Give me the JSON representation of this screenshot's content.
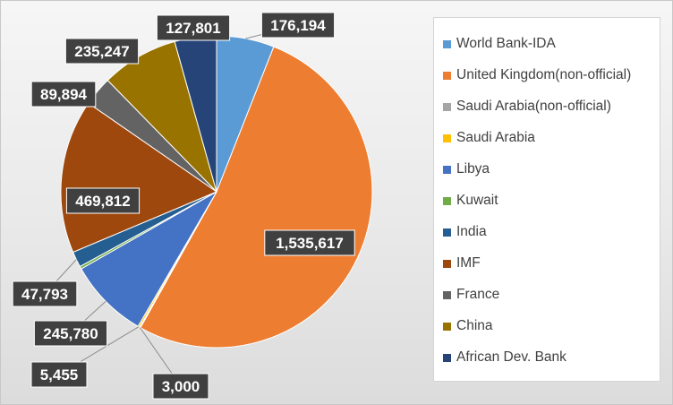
{
  "chart_data": {
    "type": "pie",
    "slices": [
      {
        "label": "World Bank-IDA",
        "value": 176194,
        "display": "176,194",
        "color": "#5b9bd5"
      },
      {
        "label": "United Kingdom(non-official)",
        "value": 1535617,
        "display": "1,535,617",
        "color": "#ed7d31"
      },
      {
        "label": "Saudi Arabia(non-official)",
        "value": 3000,
        "display": "3,000",
        "color": "#a5a5a5"
      },
      {
        "label": "Saudi Arabia",
        "value": 5455,
        "display": "5,455",
        "color": "#ffc000"
      },
      {
        "label": "Libya",
        "value": 245780,
        "display": "245,780",
        "color": "#4472c4"
      },
      {
        "label": "Kuwait",
        "value": 8000,
        "display": "",
        "color": "#70ad47"
      },
      {
        "label": "India",
        "value": 47793,
        "display": "47,793",
        "color": "#255e91"
      },
      {
        "label": "IMF",
        "value": 469812,
        "display": "469,812",
        "color": "#9e480e"
      },
      {
        "label": "France",
        "value": 89894,
        "display": "89,894",
        "color": "#636363"
      },
      {
        "label": "China",
        "value": 235247,
        "display": "235,247",
        "color": "#997300"
      },
      {
        "label": "African Dev. Bank",
        "value": 127801,
        "display": "127,801",
        "color": "#264478"
      }
    ],
    "legend_position": "right"
  }
}
